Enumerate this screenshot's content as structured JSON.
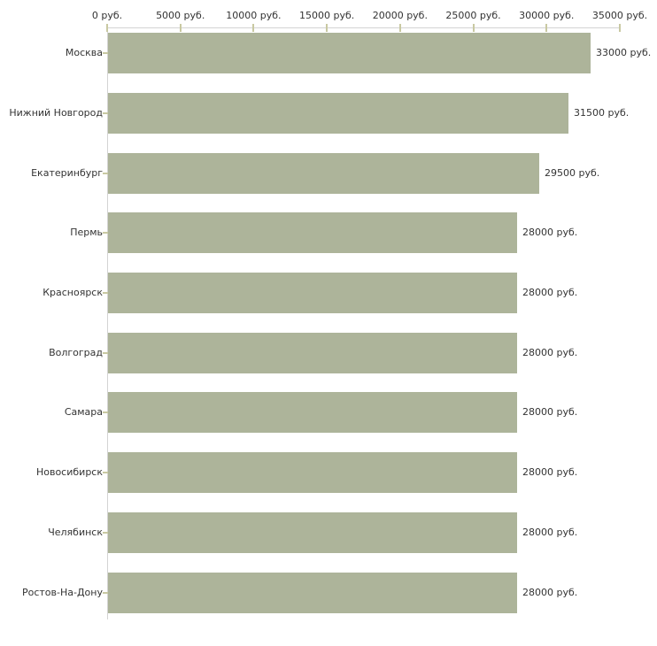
{
  "chart_data": {
    "type": "bar",
    "orientation": "horizontal",
    "title": "",
    "categories": [
      "Москва",
      "Нижний Новгород",
      "Екатеринбург",
      "Пермь",
      "Красноярск",
      "Волгоград",
      "Самара",
      "Новосибирск",
      "Челябинск",
      "Ростов-На-Дону"
    ],
    "values": [
      33000,
      31500,
      29500,
      28000,
      28000,
      28000,
      28000,
      28000,
      28000,
      28000
    ],
    "value_labels": [
      "33000 руб.",
      "31500 руб.",
      "29500 руб.",
      "28000 руб.",
      "28000 руб.",
      "28000 руб.",
      "28000 руб.",
      "28000 руб.",
      "28000 руб.",
      "28000 руб."
    ],
    "x_ticks": [
      0,
      5000,
      10000,
      15000,
      20000,
      25000,
      30000,
      35000
    ],
    "x_tick_labels": [
      "0 руб.",
      "5000 руб.",
      "10000 руб.",
      "15000 руб.",
      "20000 руб.",
      "25000 руб.",
      "30000 руб.",
      "35000 руб."
    ],
    "xlabel": "",
    "ylabel": "",
    "xlim": [
      0,
      35000
    ],
    "unit": "руб.",
    "grid": false,
    "legend": false,
    "bar_color": "#adb49a",
    "axis_line_color": "#d4d4d4",
    "tick_color": "#c9c9a2",
    "text_color": "#333333",
    "background_color": "#ffffff"
  }
}
